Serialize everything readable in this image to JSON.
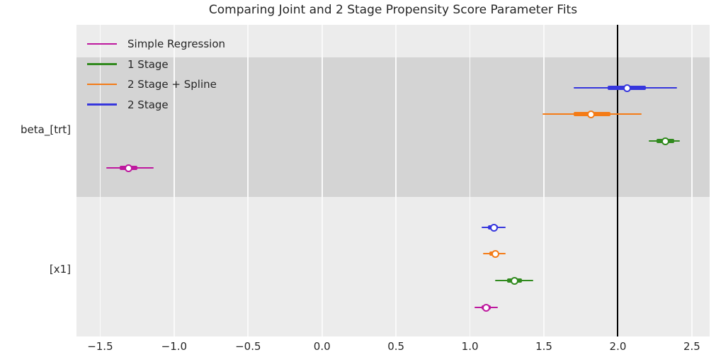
{
  "chart_data": {
    "type": "forest",
    "title": "Comparing Joint and 2 Stage Propensity Score Parameter Fits",
    "xlabel": "",
    "ylabel": "",
    "xlim": [
      -1.66,
      2.62
    ],
    "grid": "vertical-only",
    "reference_line_x": 2.0,
    "legend_position": "upper left",
    "legend": [
      {
        "label": "Simple Regression",
        "color": "#be189e"
      },
      {
        "label": "1 Stage",
        "color": "#318a1e"
      },
      {
        "label": "2 Stage + Spline",
        "color": "#f47b16"
      },
      {
        "label": "2 Stage",
        "color": "#3636dd"
      }
    ],
    "x_ticks": [
      {
        "value": -1.5,
        "label": "−1.5"
      },
      {
        "value": -1.0,
        "label": "−1.0"
      },
      {
        "value": -0.5,
        "label": "−0.5"
      },
      {
        "value": 0.0,
        "label": "0.0"
      },
      {
        "value": 0.5,
        "label": "0.5"
      },
      {
        "value": 1.0,
        "label": "1.0"
      },
      {
        "value": 1.5,
        "label": "1.5"
      },
      {
        "value": 2.0,
        "label": "2.0"
      },
      {
        "value": 2.5,
        "label": "2.5"
      }
    ],
    "groups": [
      {
        "label": "beta_[trt]",
        "shaded": true,
        "rows": [
          {
            "series": "2 Stage",
            "mean": 2.06,
            "ci_inner": [
              1.93,
              2.19
            ],
            "ci_outer": [
              1.7,
              2.4
            ]
          },
          {
            "series": "2 Stage + Spline",
            "mean": 1.82,
            "ci_inner": [
              1.7,
              1.95
            ],
            "ci_outer": [
              1.49,
              2.16
            ]
          },
          {
            "series": "1 Stage",
            "mean": 2.32,
            "ci_inner": [
              2.26,
              2.38
            ],
            "ci_outer": [
              2.21,
              2.42
            ]
          },
          {
            "series": "Simple Regression",
            "mean": -1.31,
            "ci_inner": [
              -1.37,
              -1.25
            ],
            "ci_outer": [
              -1.46,
              -1.14
            ]
          }
        ]
      },
      {
        "label": "[x1]",
        "shaded": false,
        "rows": [
          {
            "series": "2 Stage",
            "mean": 1.16,
            "ci_inner": [
              1.12,
              1.19
            ],
            "ci_outer": [
              1.08,
              1.24
            ]
          },
          {
            "series": "2 Stage + Spline",
            "mean": 1.17,
            "ci_inner": [
              1.13,
              1.19
            ],
            "ci_outer": [
              1.09,
              1.24
            ]
          },
          {
            "series": "1 Stage",
            "mean": 1.3,
            "ci_inner": [
              1.25,
              1.35
            ],
            "ci_outer": [
              1.17,
              1.43
            ]
          },
          {
            "series": "Simple Regression",
            "mean": 1.11,
            "ci_inner": [
              1.08,
              1.14
            ],
            "ci_outer": [
              1.03,
              1.19
            ]
          }
        ]
      }
    ],
    "colors": {
      "figure_bg": "#ffffff",
      "plot_bg": "#ececec",
      "shaded_band": "#d4d4d4",
      "gridline": "#fafafa",
      "reference_line": "#000000",
      "text": "#262626",
      "marker_face": "#ffffff"
    }
  }
}
